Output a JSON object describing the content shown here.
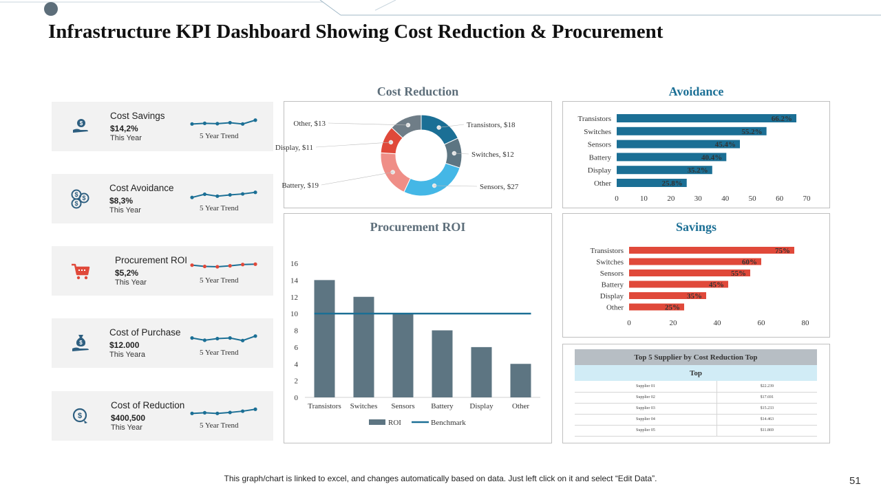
{
  "slide": {
    "title": "Infrastructure KPI Dashboard Showing Cost Reduction & Procurement",
    "footer": "This graph/chart is linked to excel, and changes automatically based on data. Just left click on it and select “Edit Data”.",
    "page_number": "51"
  },
  "colors": {
    "teal": "#1b6f95",
    "slate": "#5d7582",
    "red": "#e0493a",
    "sky": "#44b7e6",
    "salmon": "#ef8e87",
    "title_slate": "#5d6e7a",
    "title_blue": "#1b6f95"
  },
  "kpis": [
    {
      "icon": "money-hand-icon",
      "name": "Cost Savings",
      "value": "$14,2%",
      "sub": "This Year",
      "trend": "5 Year Trend",
      "spark_color": "#1b6f95",
      "dot_color": "#1b6f95",
      "spark": [
        3,
        3.2,
        3.1,
        3.4,
        3.0,
        4.2
      ]
    },
    {
      "icon": "dollar-coins-icon",
      "name": "Cost Avoidance",
      "value": "$8,3%",
      "sub": "This Year",
      "trend": "5 Year Trend",
      "spark_color": "#1b6f95",
      "dot_color": "#1b6f95",
      "spark": [
        2.6,
        3.6,
        3.0,
        3.4,
        3.7,
        4.2
      ]
    },
    {
      "icon": "shopping-cart-icon",
      "name": "Procurement ROI",
      "value": "$5,2%",
      "sub": "This Year",
      "trend": "5 Year Trend",
      "spark_color": "#1b6f95",
      "dot_color": "#e0493a",
      "spark": [
        4,
        3.6,
        3.5,
        3.8,
        4.2,
        4.3
      ]
    },
    {
      "icon": "money-bag-hand-icon",
      "name": "Cost of Purchase",
      "value": "$12.000",
      "sub": "This Yeara",
      "trend": "5 Year Trend",
      "spark_color": "#1b6f95",
      "dot_color": "#1b6f95",
      "spark": [
        3.8,
        3.1,
        3.6,
        3.8,
        3.0,
        4.4
      ]
    },
    {
      "icon": "dollar-cycle-icon",
      "name": "Cost of Reduction",
      "value": "$400,500",
      "sub": "This Year",
      "trend": "5 Year Trend",
      "spark_color": "#1b6f95",
      "dot_color": "#1b6f95",
      "spark": [
        3.0,
        3.2,
        3.0,
        3.3,
        3.7,
        4.3
      ]
    }
  ],
  "chart_data": [
    {
      "type": "pie",
      "title": "Cost Reduction",
      "donut": true,
      "slices": [
        {
          "label": "Transistors",
          "value": 18,
          "display": "Transistors, $18",
          "color": "#1b6f95"
        },
        {
          "label": "Switches",
          "value": 12,
          "display": "Switches, $12",
          "color": "#5d7582"
        },
        {
          "label": "Sensors",
          "value": 27,
          "display": "Sensors, $27",
          "color": "#44b7e6"
        },
        {
          "label": "Battery",
          "value": 19,
          "display": "Battery, $19",
          "color": "#ef8e87"
        },
        {
          "label": "Display",
          "value": 11,
          "display": "Display, $11",
          "color": "#e0493a"
        },
        {
          "label": "Other",
          "value": 13,
          "display": "Other, $13",
          "color": "#6f7d87"
        }
      ]
    },
    {
      "type": "bar",
      "orientation": "horizontal",
      "title": "Avoidance",
      "categories": [
        "Transistors",
        "Switches",
        "Sensors",
        "Battery",
        "Display",
        "Other"
      ],
      "values": [
        66.2,
        55.2,
        45.4,
        40.4,
        35.2,
        25.8
      ],
      "labels": [
        "66.2%",
        "55.2%",
        "45.4%",
        "40.4%",
        "35.2%",
        "25.8%"
      ],
      "xlim": [
        0,
        70
      ],
      "xticks": [
        "0",
        "10",
        "20",
        "30",
        "40",
        "50",
        "60",
        "70"
      ],
      "color": "#1b6f95"
    },
    {
      "type": "bar",
      "title": "Procurement ROI",
      "categories": [
        "Transistors",
        "Switches",
        "Sensors",
        "Battery",
        "Display",
        "Other"
      ],
      "series": [
        {
          "name": "ROI",
          "values": [
            14,
            12,
            10,
            8,
            6,
            4
          ],
          "color": "#5d7582"
        },
        {
          "name": "Benchmark",
          "type": "line",
          "values": [
            10,
            10,
            10,
            10,
            10,
            10
          ],
          "color": "#1b6f95"
        }
      ],
      "ylim": [
        0,
        16
      ],
      "yticks": [
        "0",
        "2",
        "4",
        "6",
        "8",
        "10",
        "12",
        "14",
        "16"
      ]
    },
    {
      "type": "bar",
      "orientation": "horizontal",
      "title": "Savings",
      "categories": [
        "Transistors",
        "Switches",
        "Sensors",
        "Battery",
        "Display",
        "Other"
      ],
      "values": [
        75,
        60,
        55,
        45,
        35,
        25
      ],
      "labels": [
        "75%",
        "60%",
        "55%",
        "45%",
        "35%",
        "25%"
      ],
      "xlim": [
        0,
        80
      ],
      "xticks": [
        "0",
        "20",
        "40",
        "60",
        "80"
      ],
      "color": "#e0493a"
    },
    {
      "type": "table",
      "title": "Top 5 Supplier by Cost Reduction Top",
      "subheader": "Top",
      "rows": [
        [
          "Supplier 01",
          "$22.239"
        ],
        [
          "Supplier 02",
          "$17.691"
        ],
        [
          "Supplier 03",
          "$15.233"
        ],
        [
          "Supplier 04",
          "$14.463"
        ],
        [
          "Supplier 05",
          "$11.869"
        ]
      ]
    }
  ]
}
